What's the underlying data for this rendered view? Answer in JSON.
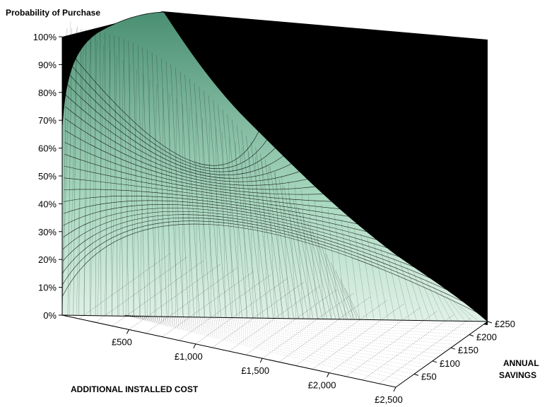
{
  "chart_data": {
    "type": "surface",
    "title": "",
    "zlabel": "Probability of Purchase",
    "xlabel": "ADDITIONAL INSTALLED COST",
    "ylabel_lines": [
      "ANNUAL",
      "SAVINGS"
    ],
    "x_ticks": [
      "£500",
      "£1,000",
      "£1,500",
      "£2,000",
      "£2,500"
    ],
    "y_ticks": [
      "£50",
      "£100",
      "£150",
      "£200",
      "£250"
    ],
    "z_ticks": [
      "0%",
      "10%",
      "20%",
      "30%",
      "40%",
      "50%",
      "60%",
      "70%",
      "80%",
      "90%",
      "100%"
    ],
    "xlim": [
      0,
      2500
    ],
    "ylim": [
      0,
      250
    ],
    "zlim": [
      0,
      100
    ],
    "surface_samples": {
      "x": [
        0,
        500,
        1000,
        1500,
        2000,
        2500
      ],
      "y": [
        0,
        50,
        100,
        150,
        200,
        250
      ],
      "z_percent": [
        [
          0,
          0,
          0,
          0,
          0,
          0
        ],
        [
          0,
          12,
          50,
          78,
          90,
          96
        ],
        [
          0,
          3,
          15,
          35,
          57,
          72
        ],
        [
          0,
          1,
          6,
          16,
          30,
          45
        ],
        [
          0,
          0,
          2,
          7,
          15,
          25
        ],
        [
          0,
          0,
          1,
          3,
          8,
          13
        ]
      ]
    },
    "colors": {
      "back_wall": "#000000",
      "surface_high": "#4a8f73",
      "surface_low": "#ffffff",
      "mesh": "#000000",
      "floor": "#ffffff"
    },
    "grid": true
  }
}
